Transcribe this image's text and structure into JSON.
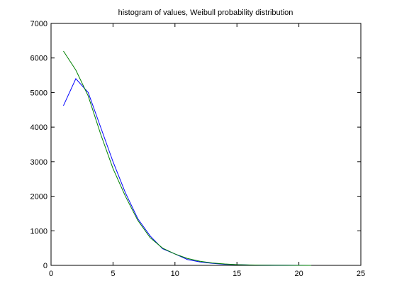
{
  "chart_data": {
    "type": "line",
    "title": "histogram of values, Weibull probability distribution",
    "x": [
      1,
      2,
      3,
      4,
      5,
      6,
      7,
      8,
      9,
      10,
      11,
      12,
      13,
      14,
      15,
      16,
      17,
      18,
      19,
      20,
      21
    ],
    "series": [
      {
        "color": "#0000ff",
        "values": [
          4620,
          5400,
          5000,
          4000,
          3000,
          2100,
          1350,
          850,
          480,
          330,
          170,
          100,
          60,
          30,
          20,
          10,
          8,
          6,
          4,
          3,
          0
        ]
      },
      {
        "color": "#008000",
        "values": [
          6200,
          5650,
          4900,
          3800,
          2800,
          2000,
          1300,
          800,
          500,
          330,
          200,
          120,
          70,
          40,
          20,
          12,
          7,
          4,
          2,
          1,
          0
        ]
      }
    ],
    "xlim": [
      0,
      25
    ],
    "xticks": [
      0,
      5,
      10,
      15,
      20,
      25
    ],
    "ylim": [
      0,
      7000
    ],
    "yticks": [
      0,
      1000,
      2000,
      3000,
      4000,
      5000,
      6000,
      7000
    ],
    "grid": false
  }
}
